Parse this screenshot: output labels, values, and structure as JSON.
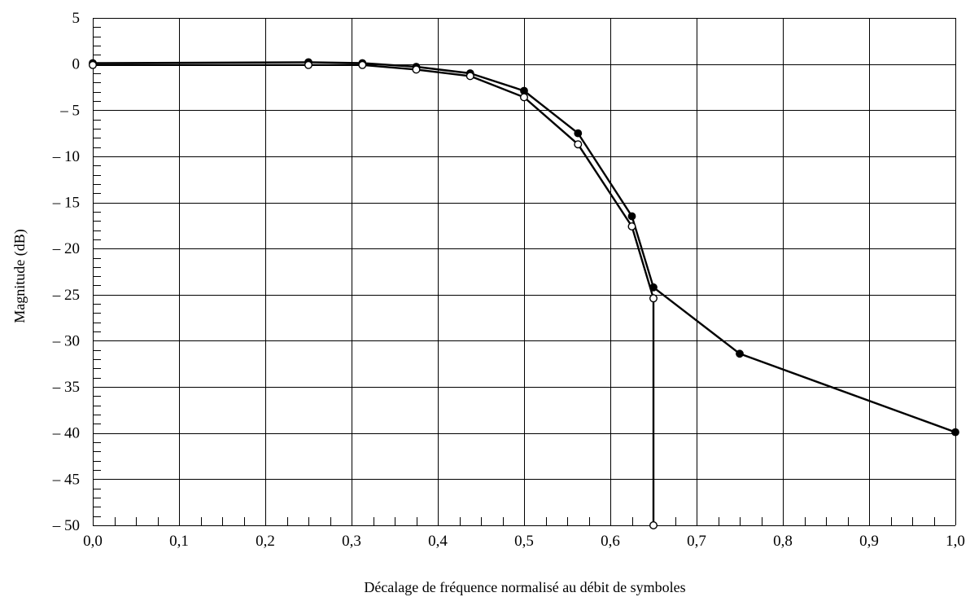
{
  "chart_data": {
    "type": "line",
    "xlabel": "Décalage de fréquence normalisé au débit de symboles",
    "ylabel": "Magnitude (dB)",
    "xlim": [
      0.0,
      1.0
    ],
    "ylim": [
      -50,
      5
    ],
    "x_ticks": [
      0.0,
      0.1,
      0.2,
      0.3,
      0.4,
      0.5,
      0.6,
      0.7,
      0.8,
      0.9,
      1.0
    ],
    "x_tick_labels": [
      "0,0",
      "0,1",
      "0,2",
      "0,3",
      "0,4",
      "0,5",
      "0,6",
      "0,7",
      "0,8",
      "0,9",
      "1,0"
    ],
    "y_ticks": [
      5,
      0,
      -5,
      -10,
      -15,
      -20,
      -25,
      -30,
      -35,
      -40,
      -45,
      -50
    ],
    "y_tick_labels": [
      "5",
      "0",
      "– 5",
      "– 10",
      "– 15",
      "– 20",
      "– 25",
      "– 30",
      "– 35",
      "– 40",
      "– 45",
      "– 50"
    ],
    "grid": true,
    "series": [
      {
        "marker": "filled-circle",
        "color": "#000000",
        "x": [
          0.0,
          0.25,
          0.3125,
          0.375,
          0.4375,
          0.5,
          0.5625,
          0.625,
          0.65,
          0.75,
          1.0
        ],
        "y": [
          0.1,
          0.2,
          0.1,
          -0.3,
          -1.0,
          -2.9,
          -7.5,
          -16.5,
          -24.2,
          -31.4,
          -39.9
        ]
      },
      {
        "marker": "open-circle",
        "color": "#000000",
        "x": [
          0.0,
          0.25,
          0.3125,
          0.375,
          0.4375,
          0.5,
          0.5625,
          0.625,
          0.65,
          0.65
        ],
        "y": [
          -0.1,
          -0.1,
          -0.1,
          -0.6,
          -1.3,
          -3.6,
          -8.7,
          -17.6,
          -25.4,
          -50.0
        ]
      }
    ]
  }
}
